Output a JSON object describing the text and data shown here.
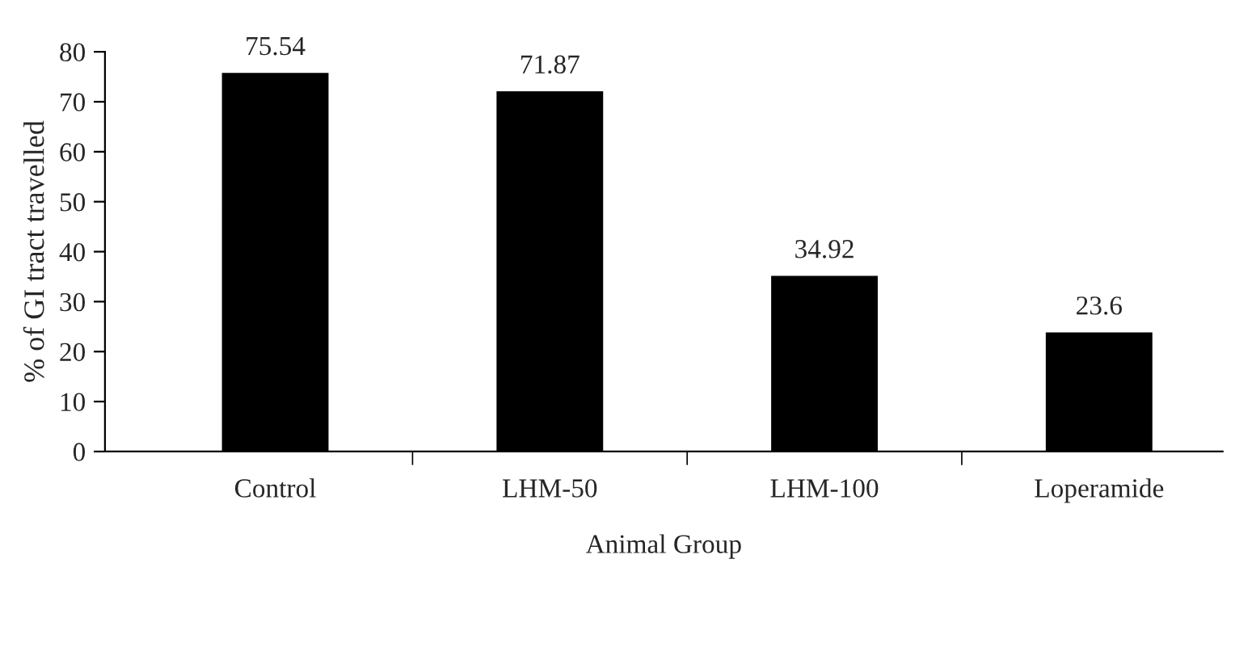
{
  "chart_data": {
    "type": "bar",
    "xlabel": "Animal Group",
    "ylabel": "% of GI tract travelled",
    "categories": [
      "Control",
      "LHM-50",
      "LHM-100",
      "Loperamide"
    ],
    "values": [
      75.54,
      71.87,
      34.92,
      23.6
    ],
    "color": "#000000",
    "ylim": [
      0,
      80
    ],
    "yticks": [
      0,
      10,
      20,
      30,
      40,
      50,
      60,
      70,
      80
    ],
    "data_labels": true,
    "grid": false,
    "legend": false
  }
}
